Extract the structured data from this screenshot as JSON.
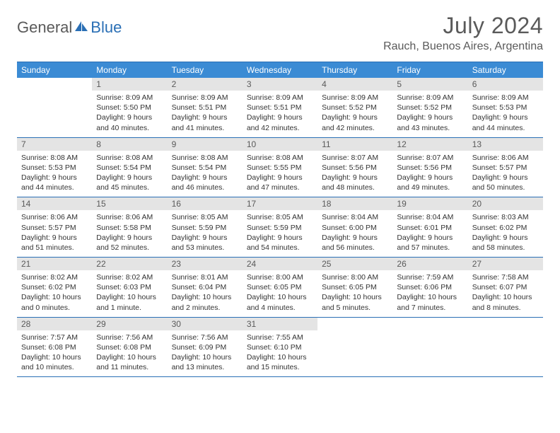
{
  "brand": {
    "part1": "General",
    "part2": "Blue"
  },
  "title": "July 2024",
  "location": "Rauch, Buenos Aires, Argentina",
  "colors": {
    "header_bg": "#3b8bd4",
    "border": "#2a6fb5",
    "daynum_bg": "#e4e4e4",
    "text_muted": "#5a5a5a",
    "text": "#333333",
    "brand_accent": "#2a6fb5"
  },
  "weekdays": [
    "Sunday",
    "Monday",
    "Tuesday",
    "Wednesday",
    "Thursday",
    "Friday",
    "Saturday"
  ],
  "start_offset": 1,
  "days": [
    {
      "n": 1,
      "sr": "8:09 AM",
      "ss": "5:50 PM",
      "dl": "9 hours and 40 minutes."
    },
    {
      "n": 2,
      "sr": "8:09 AM",
      "ss": "5:51 PM",
      "dl": "9 hours and 41 minutes."
    },
    {
      "n": 3,
      "sr": "8:09 AM",
      "ss": "5:51 PM",
      "dl": "9 hours and 42 minutes."
    },
    {
      "n": 4,
      "sr": "8:09 AM",
      "ss": "5:52 PM",
      "dl": "9 hours and 42 minutes."
    },
    {
      "n": 5,
      "sr": "8:09 AM",
      "ss": "5:52 PM",
      "dl": "9 hours and 43 minutes."
    },
    {
      "n": 6,
      "sr": "8:09 AM",
      "ss": "5:53 PM",
      "dl": "9 hours and 44 minutes."
    },
    {
      "n": 7,
      "sr": "8:08 AM",
      "ss": "5:53 PM",
      "dl": "9 hours and 44 minutes."
    },
    {
      "n": 8,
      "sr": "8:08 AM",
      "ss": "5:54 PM",
      "dl": "9 hours and 45 minutes."
    },
    {
      "n": 9,
      "sr": "8:08 AM",
      "ss": "5:54 PM",
      "dl": "9 hours and 46 minutes."
    },
    {
      "n": 10,
      "sr": "8:08 AM",
      "ss": "5:55 PM",
      "dl": "9 hours and 47 minutes."
    },
    {
      "n": 11,
      "sr": "8:07 AM",
      "ss": "5:56 PM",
      "dl": "9 hours and 48 minutes."
    },
    {
      "n": 12,
      "sr": "8:07 AM",
      "ss": "5:56 PM",
      "dl": "9 hours and 49 minutes."
    },
    {
      "n": 13,
      "sr": "8:06 AM",
      "ss": "5:57 PM",
      "dl": "9 hours and 50 minutes."
    },
    {
      "n": 14,
      "sr": "8:06 AM",
      "ss": "5:57 PM",
      "dl": "9 hours and 51 minutes."
    },
    {
      "n": 15,
      "sr": "8:06 AM",
      "ss": "5:58 PM",
      "dl": "9 hours and 52 minutes."
    },
    {
      "n": 16,
      "sr": "8:05 AM",
      "ss": "5:59 PM",
      "dl": "9 hours and 53 minutes."
    },
    {
      "n": 17,
      "sr": "8:05 AM",
      "ss": "5:59 PM",
      "dl": "9 hours and 54 minutes."
    },
    {
      "n": 18,
      "sr": "8:04 AM",
      "ss": "6:00 PM",
      "dl": "9 hours and 56 minutes."
    },
    {
      "n": 19,
      "sr": "8:04 AM",
      "ss": "6:01 PM",
      "dl": "9 hours and 57 minutes."
    },
    {
      "n": 20,
      "sr": "8:03 AM",
      "ss": "6:02 PM",
      "dl": "9 hours and 58 minutes."
    },
    {
      "n": 21,
      "sr": "8:02 AM",
      "ss": "6:02 PM",
      "dl": "10 hours and 0 minutes."
    },
    {
      "n": 22,
      "sr": "8:02 AM",
      "ss": "6:03 PM",
      "dl": "10 hours and 1 minute."
    },
    {
      "n": 23,
      "sr": "8:01 AM",
      "ss": "6:04 PM",
      "dl": "10 hours and 2 minutes."
    },
    {
      "n": 24,
      "sr": "8:00 AM",
      "ss": "6:05 PM",
      "dl": "10 hours and 4 minutes."
    },
    {
      "n": 25,
      "sr": "8:00 AM",
      "ss": "6:05 PM",
      "dl": "10 hours and 5 minutes."
    },
    {
      "n": 26,
      "sr": "7:59 AM",
      "ss": "6:06 PM",
      "dl": "10 hours and 7 minutes."
    },
    {
      "n": 27,
      "sr": "7:58 AM",
      "ss": "6:07 PM",
      "dl": "10 hours and 8 minutes."
    },
    {
      "n": 28,
      "sr": "7:57 AM",
      "ss": "6:08 PM",
      "dl": "10 hours and 10 minutes."
    },
    {
      "n": 29,
      "sr": "7:56 AM",
      "ss": "6:08 PM",
      "dl": "10 hours and 11 minutes."
    },
    {
      "n": 30,
      "sr": "7:56 AM",
      "ss": "6:09 PM",
      "dl": "10 hours and 13 minutes."
    },
    {
      "n": 31,
      "sr": "7:55 AM",
      "ss": "6:10 PM",
      "dl": "10 hours and 15 minutes."
    }
  ],
  "labels": {
    "sunrise": "Sunrise:",
    "sunset": "Sunset:",
    "daylight": "Daylight:"
  }
}
